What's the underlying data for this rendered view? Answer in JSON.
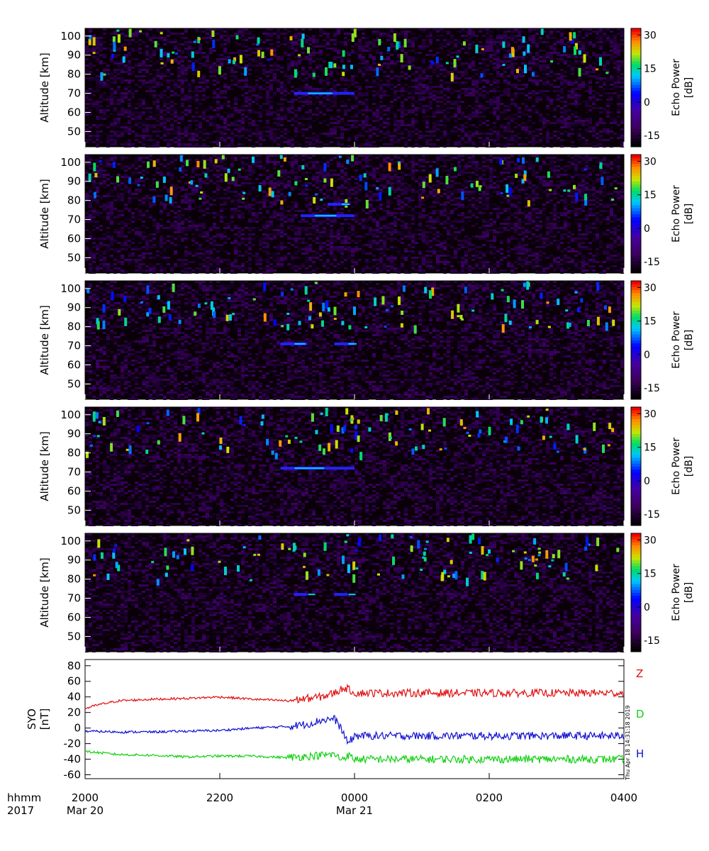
{
  "chart_data": [
    {
      "type": "heatmap",
      "panel": 1,
      "ylabel": "Altitude [km]",
      "yticks": [
        50,
        60,
        70,
        80,
        90,
        100
      ],
      "ylim": [
        42,
        104
      ],
      "colorbar": {
        "label": "Echo Power",
        "unit": "[dB]",
        "ticks": [
          -15,
          0,
          15,
          30
        ],
        "range": [
          -20,
          33
        ]
      },
      "echo_layers": [
        {
          "alt": 70,
          "t_start": 3.1,
          "t_end": 4.0
        }
      ]
    },
    {
      "type": "heatmap",
      "panel": 2,
      "ylabel": "Altitude [km]",
      "yticks": [
        50,
        60,
        70,
        80,
        90,
        100
      ],
      "ylim": [
        42,
        104
      ],
      "colorbar": {
        "label": "Echo Power",
        "unit": "[dB]",
        "ticks": [
          -15,
          0,
          15,
          30
        ],
        "range": [
          -20,
          33
        ]
      },
      "echo_layers": [
        {
          "alt": 72,
          "t_start": 3.2,
          "t_end": 4.0
        },
        {
          "alt": 78,
          "t_start": 3.6,
          "t_end": 3.9
        }
      ]
    },
    {
      "type": "heatmap",
      "panel": 3,
      "ylabel": "Altitude [km]",
      "yticks": [
        50,
        60,
        70,
        80,
        90,
        100
      ],
      "ylim": [
        42,
        104
      ],
      "colorbar": {
        "label": "Echo Power",
        "unit": "[dB]",
        "ticks": [
          -15,
          0,
          15,
          30
        ],
        "range": [
          -20,
          33
        ]
      },
      "echo_layers": [
        {
          "alt": 71,
          "t_start": 2.9,
          "t_end": 3.3
        },
        {
          "alt": 71,
          "t_start": 3.7,
          "t_end": 4.0
        }
      ]
    },
    {
      "type": "heatmap",
      "panel": 4,
      "ylabel": "Altitude [km]",
      "yticks": [
        50,
        60,
        70,
        80,
        90,
        100
      ],
      "ylim": [
        42,
        104
      ],
      "colorbar": {
        "label": "Echo Power",
        "unit": "[dB]",
        "ticks": [
          -15,
          0,
          15,
          30
        ],
        "range": [
          -20,
          33
        ]
      },
      "echo_layers": [
        {
          "alt": 72,
          "t_start": 2.9,
          "t_end": 4.0
        }
      ]
    },
    {
      "type": "heatmap",
      "panel": 5,
      "ylabel": "Altitude [km]",
      "yticks": [
        50,
        60,
        70,
        80,
        90,
        100
      ],
      "ylim": [
        42,
        104
      ],
      "colorbar": {
        "label": "Echo Power",
        "unit": "[dB]",
        "ticks": [
          -15,
          0,
          15,
          30
        ],
        "range": [
          -20,
          33
        ]
      },
      "echo_layers": [
        {
          "alt": 72,
          "t_start": 3.1,
          "t_end": 3.3
        },
        {
          "alt": 72,
          "t_start": 3.7,
          "t_end": 3.9
        }
      ]
    },
    {
      "type": "line",
      "panel": 6,
      "ylabel": "SYO",
      "yunit": "[nT]",
      "yticks": [
        -60,
        -40,
        -20,
        0,
        20,
        40,
        60,
        80
      ],
      "ylim": [
        -65,
        88
      ],
      "series": [
        {
          "name": "Z",
          "color": "#e01010",
          "x": [
            0,
            0.2,
            0.5,
            1,
            1.5,
            2,
            2.5,
            3,
            3.5,
            3.7,
            3.85,
            3.95,
            4
          ],
          "values": [
            25,
            30,
            35,
            37,
            38,
            40,
            37,
            35,
            40,
            45,
            52,
            48,
            45
          ]
        },
        {
          "name": "D",
          "color": "#10d010",
          "x": [
            0,
            0.5,
            1,
            1.5,
            2,
            2.5,
            3,
            3.5,
            3.7,
            3.8,
            3.9,
            4
          ],
          "values": [
            -30,
            -34,
            -35,
            -37,
            -36,
            -36,
            -38,
            -35,
            -34,
            -40,
            -35,
            -40
          ]
        },
        {
          "name": "H",
          "color": "#1010d0",
          "x": [
            0,
            0.5,
            1,
            1.5,
            2,
            2.5,
            3,
            3.3,
            3.5,
            3.7,
            3.8,
            3.9,
            4
          ],
          "values": [
            -4,
            -5,
            -5,
            -4,
            -3,
            0,
            2,
            5,
            10,
            12,
            0,
            -20,
            -10
          ]
        }
      ]
    }
  ],
  "xaxis": {
    "row1_label": "hhmm",
    "row2_label": "2017",
    "ticks": [
      {
        "label": "2000",
        "date": "Mar 20"
      },
      {
        "label": "2200",
        "date": ""
      },
      {
        "label": "0000",
        "date": "Mar 21"
      },
      {
        "label": "0200",
        "date": ""
      },
      {
        "label": "0400",
        "date": ""
      }
    ],
    "range_hours": [
      0,
      8
    ]
  },
  "timestamp": "Thu Apr 18 14:31:18 2019",
  "colors": {
    "axes": "#000000",
    "background": "#000000"
  }
}
